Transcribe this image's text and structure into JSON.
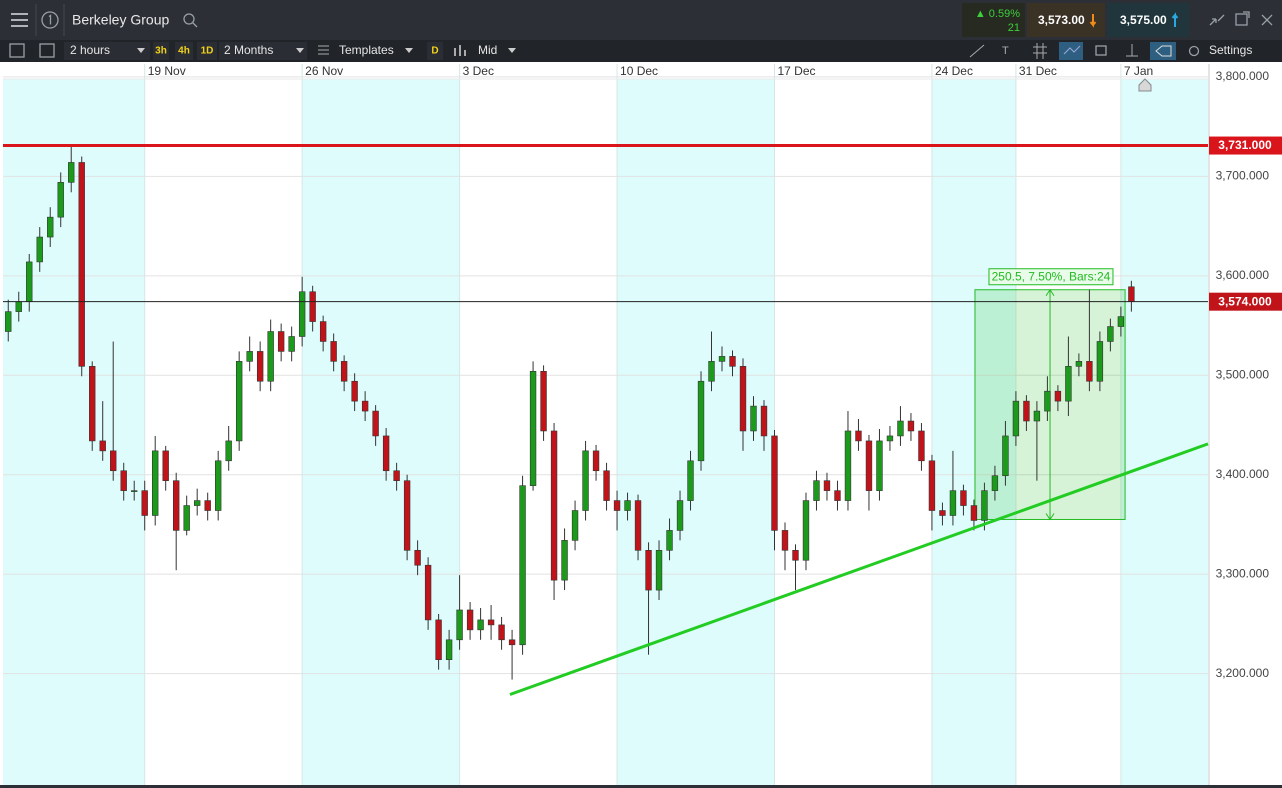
{
  "header": {
    "instrument": "Berkeley Group",
    "change": "▲ 0.59%",
    "change_points": "21",
    "sell": "3,573.00",
    "buy": "3,575.00"
  },
  "toolbar": {
    "interval": "2 hours",
    "quick_intervals": [
      "3h",
      "4h",
      "1D"
    ],
    "range": "2 Months",
    "templates": "Templates",
    "daily": "D",
    "price_type": "Mid",
    "settings": "Settings"
  },
  "chart_data": {
    "type": "candlestick",
    "up_color": "#1c9a1c",
    "down_color": "#c0141a",
    "open": [
      3544,
      3564,
      3574,
      3614,
      3639,
      3659,
      3694,
      3714,
      3509,
      3434,
      3424,
      3404,
      3384,
      3384,
      3359,
      3424,
      3394,
      3344,
      3369,
      3374,
      3364,
      3414,
      3434,
      3514,
      3524,
      3494,
      3544,
      3524,
      3539,
      3584,
      3554,
      3534,
      3514,
      3494,
      3474,
      3464,
      3439,
      3404,
      3394,
      3324,
      3309,
      3254,
      3214,
      3234,
      3264,
      3244,
      3254,
      3249,
      3234,
      3229,
      3389,
      3504,
      3444,
      3294,
      3334,
      3364,
      3424,
      3404,
      3374,
      3364,
      3374,
      3324,
      3284,
      3324,
      3344,
      3374,
      3414,
      3494,
      3514,
      3519,
      3509,
      3444,
      3469,
      3439,
      3344,
      3324,
      3314,
      3374,
      3394,
      3384,
      3374,
      3444,
      3434,
      3384,
      3434,
      3439,
      3454,
      3444,
      3414,
      3364,
      3359,
      3384,
      3369,
      3354,
      3384,
      3399,
      3439,
      3474,
      3454,
      3464,
      3484,
      3474,
      3509,
      3514,
      3494,
      3534,
      3549,
      3589
    ],
    "high": [
      3576,
      3584,
      3622,
      3649,
      3669,
      3704,
      3731,
      3720,
      3514,
      3474,
      3534,
      3412,
      3394,
      3394,
      3439,
      3429,
      3402,
      3379,
      3386,
      3382,
      3424,
      3449,
      3524,
      3539,
      3534,
      3556,
      3552,
      3549,
      3599,
      3590,
      3560,
      3542,
      3520,
      3502,
      3484,
      3470,
      3447,
      3412,
      3400,
      3334,
      3317,
      3260,
      3244,
      3299,
      3272,
      3266,
      3269,
      3257,
      3244,
      3399,
      3514,
      3510,
      3452,
      3346,
      3374,
      3434,
      3430,
      3412,
      3384,
      3382,
      3380,
      3332,
      3334,
      3356,
      3384,
      3424,
      3504,
      3544,
      3529,
      3525,
      3517,
      3479,
      3475,
      3445,
      3352,
      3330,
      3382,
      3404,
      3402,
      3394,
      3464,
      3456,
      3440,
      3446,
      3449,
      3469,
      3462,
      3452,
      3420,
      3372,
      3424,
      3390,
      3375,
      3392,
      3409,
      3454,
      3484,
      3480,
      3474,
      3499,
      3490,
      3539,
      3522,
      3586,
      3544,
      3557,
      3569,
      3595
    ],
    "low": [
      3534,
      3554,
      3564,
      3604,
      3629,
      3649,
      3684,
      3499,
      3424,
      3414,
      3394,
      3374,
      3374,
      3344,
      3349,
      3384,
      3304,
      3339,
      3359,
      3354,
      3354,
      3404,
      3424,
      3504,
      3484,
      3484,
      3514,
      3514,
      3529,
      3544,
      3524,
      3504,
      3484,
      3464,
      3454,
      3429,
      3394,
      3384,
      3314,
      3299,
      3244,
      3204,
      3204,
      3224,
      3234,
      3234,
      3234,
      3224,
      3194,
      3219,
      3384,
      3434,
      3274,
      3284,
      3324,
      3354,
      3394,
      3364,
      3344,
      3354,
      3314,
      3219,
      3274,
      3314,
      3334,
      3364,
      3404,
      3484,
      3504,
      3499,
      3424,
      3434,
      3424,
      3324,
      3304,
      3284,
      3304,
      3364,
      3374,
      3364,
      3364,
      3424,
      3364,
      3374,
      3424,
      3429,
      3434,
      3404,
      3344,
      3349,
      3349,
      3359,
      3344,
      3344,
      3374,
      3389,
      3429,
      3444,
      3394,
      3454,
      3464,
      3459,
      3499,
      3484,
      3484,
      3524,
      3539,
      3564
    ],
    "close": [
      3564,
      3574,
      3614,
      3639,
      3659,
      3694,
      3714,
      3509,
      3434,
      3424,
      3404,
      3384,
      3384,
      3359,
      3424,
      3394,
      3344,
      3369,
      3374,
      3364,
      3414,
      3434,
      3514,
      3524,
      3494,
      3544,
      3524,
      3539,
      3584,
      3554,
      3534,
      3514,
      3494,
      3474,
      3464,
      3439,
      3404,
      3394,
      3324,
      3309,
      3254,
      3214,
      3234,
      3264,
      3244,
      3254,
      3249,
      3234,
      3229,
      3389,
      3504,
      3444,
      3294,
      3334,
      3364,
      3424,
      3404,
      3374,
      3364,
      3374,
      3324,
      3284,
      3324,
      3344,
      3374,
      3414,
      3494,
      3514,
      3519,
      3509,
      3444,
      3469,
      3439,
      3344,
      3324,
      3314,
      3374,
      3394,
      3384,
      3374,
      3444,
      3434,
      3384,
      3434,
      3439,
      3454,
      3444,
      3414,
      3364,
      3359,
      3384,
      3369,
      3354,
      3384,
      3399,
      3439,
      3474,
      3454,
      3464,
      3484,
      3474,
      3509,
      3514,
      3494,
      3534,
      3549,
      3559,
      3574
    ],
    "xlim": [
      -0.5,
      114.3
    ],
    "xticks": [
      {
        "value": 13,
        "label": "19 Nov"
      },
      {
        "value": 28,
        "label": "26 Nov"
      },
      {
        "value": 43,
        "label": "3 Dec"
      },
      {
        "value": 58,
        "label": "10 Dec"
      },
      {
        "value": 73,
        "label": "17 Dec"
      },
      {
        "value": 88,
        "label": "24 Dec"
      },
      {
        "value": 96,
        "label": "31 Dec"
      },
      {
        "value": 106,
        "label": "7 Jan"
      }
    ],
    "ylim": [
      3088,
      3813
    ],
    "yticks": [
      {
        "value": 3200,
        "label": "3,200.000"
      },
      {
        "value": 3300,
        "label": "3,300.000"
      },
      {
        "value": 3400,
        "label": "3,400.000"
      },
      {
        "value": 3500,
        "label": "3,500.000"
      },
      {
        "value": 3600,
        "label": "3,600.000"
      },
      {
        "value": 3700,
        "label": "3,700.000"
      },
      {
        "value": 3800,
        "label": "3,800.000"
      }
    ],
    "hlines": [
      {
        "value": 3731,
        "label": "3,731.000",
        "color": "#d9141b"
      },
      {
        "value": 3574,
        "label": "3,574.000",
        "color": "#222222"
      }
    ],
    "trendline": {
      "x": [
        47.8,
        114.3
      ],
      "y": [
        3179,
        3431
      ],
      "color": "#22cc22"
    },
    "measure": {
      "xlim": [
        92.1,
        106.4
      ],
      "ylim": [
        3355,
        3586
      ],
      "label": "250.5, 7.50%, Bars:24",
      "color": "#22bb22"
    }
  }
}
